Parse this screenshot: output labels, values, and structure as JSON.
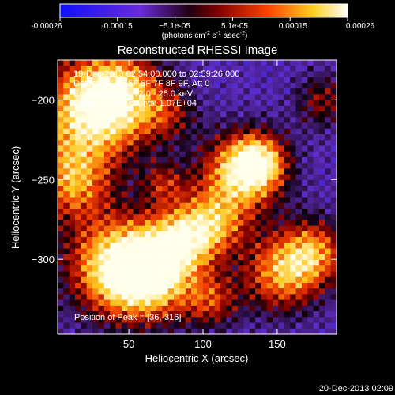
{
  "colorbar": {
    "tick_labels": [
      "-0.00026",
      "-0.00015",
      "−5.1e-05",
      "5.1e-05",
      "0.00015",
      "0.00026"
    ],
    "units_prefix": "(photons cm",
    "units_exp1": "-2",
    "units_mid": " s",
    "units_exp2": "-1",
    "units_mid2": " asec",
    "units_exp3": "-2",
    "units_suffix": ")"
  },
  "info": {
    "time_range": "19-Dec-2013 02:54:00.000 to 02:59:26.000",
    "detectors": "Detectors: 3F 5F 6F 7F 8F 9F, Att 0",
    "energy": "Energy Range: 12.0 - 25.0 keV",
    "algorithm": "Clean     Total counts: 1.07E+04",
    "peak": "Position of Peak = [36,-316]"
  },
  "footer": {
    "date": "20-Dec-2013 02:09"
  },
  "chart_data": {
    "type": "heatmap",
    "title": "Reconstructed RHESSI Image",
    "xlabel": "Heliocentric X (arcsec)",
    "ylabel": "Heliocentric Y (arcsec)",
    "xlim": [
      2,
      190
    ],
    "ylim": [
      -347,
      -175
    ],
    "x_ticks": [
      50,
      100,
      150
    ],
    "x_tick_labels": [
      "50",
      "100",
      "150"
    ],
    "y_ticks": [
      -200,
      -250,
      -300
    ],
    "y_tick_labels": [
      "−200",
      "−250",
      "−300"
    ],
    "colormap": "rainbow-hot (blue → purple → black → red → yellow → white)",
    "value_range": [
      -0.00026,
      0.00026
    ],
    "peak_position": [
      36,
      -316
    ]
  }
}
